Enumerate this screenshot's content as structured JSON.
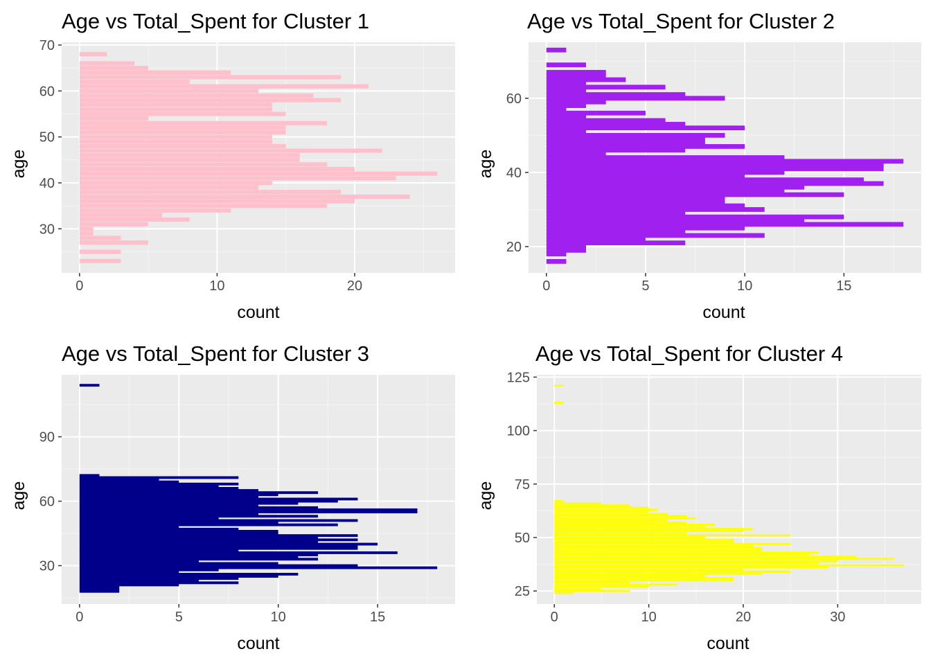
{
  "chart_data": [
    {
      "type": "bar",
      "orientation": "horizontal",
      "title": "Age vs Total_Spent for Cluster 1",
      "xlabel": "count",
      "ylabel": "age",
      "xlim": [
        -1.3,
        27.3
      ],
      "ylim": [
        20.4,
        70.6
      ],
      "xticks": [
        0,
        10,
        20
      ],
      "yticks": [
        30,
        40,
        50,
        60,
        70
      ],
      "grid": true,
      "color": "#FFC0CB",
      "series": [
        {
          "age": [
            23,
            25,
            27,
            28,
            29,
            30,
            31,
            32,
            33,
            34,
            35,
            36,
            37,
            38,
            39,
            40,
            41,
            42,
            43,
            44,
            45,
            46,
            47,
            48,
            49,
            50,
            51,
            52,
            53,
            54,
            55,
            56,
            57,
            58,
            59,
            60,
            61,
            62,
            63,
            64,
            65,
            66,
            68
          ],
          "count": [
            3,
            3,
            5,
            3,
            1,
            1,
            5,
            8,
            6,
            11,
            18,
            20,
            24,
            19,
            13,
            14,
            23,
            26,
            20,
            18,
            16,
            16,
            22,
            15,
            14,
            14,
            15,
            15,
            18,
            5,
            15,
            14,
            14,
            19,
            17,
            13,
            21,
            8,
            19,
            11,
            5,
            4,
            2
          ]
        }
      ]
    },
    {
      "type": "bar",
      "orientation": "horizontal",
      "title": "Age vs Total_Spent for Cluster 2",
      "xlabel": "count",
      "ylabel": "age",
      "xlim": [
        -0.9,
        18.9
      ],
      "ylim": [
        12.9,
        75.1
      ],
      "xticks": [
        0,
        5,
        10,
        15
      ],
      "yticks": [
        20,
        40,
        60
      ],
      "grid": true,
      "color": "#A020F0",
      "series": [
        {
          "age": [
            16,
            18,
            19,
            20,
            21,
            22,
            23,
            24,
            25,
            26,
            27,
            28,
            29,
            30,
            31,
            32,
            33,
            34,
            35,
            36,
            37,
            38,
            39,
            40,
            41,
            42,
            43,
            44,
            45,
            46,
            47,
            48,
            49,
            50,
            51,
            52,
            53,
            54,
            55,
            56,
            57,
            58,
            59,
            60,
            61,
            62,
            63,
            64,
            65,
            66,
            67,
            69,
            73
          ],
          "count": [
            1,
            1,
            2,
            2,
            7,
            5,
            11,
            7,
            10,
            18,
            13,
            15,
            7,
            11,
            10,
            9,
            9,
            15,
            12,
            13,
            17,
            16,
            10,
            12,
            17,
            17,
            18,
            12,
            3,
            7,
            10,
            8,
            8,
            9,
            2,
            10,
            7,
            6,
            2,
            5,
            1,
            2,
            3,
            9,
            7,
            2,
            6,
            2,
            4,
            3,
            3,
            2,
            1
          ]
        }
      ]
    },
    {
      "type": "bar",
      "orientation": "horizontal",
      "title": "Age vs Total_Spent for Cluster 3",
      "xlabel": "count",
      "ylabel": "age",
      "xlim": [
        -0.9,
        18.9
      ],
      "ylim": [
        12.1,
        118.9
      ],
      "xticks": [
        0,
        5,
        10,
        15
      ],
      "yticks": [
        30,
        60,
        90
      ],
      "grid": true,
      "color": "#00008B",
      "series": [
        {
          "age": [
            18,
            19,
            20,
            21,
            22,
            23,
            24,
            25,
            26,
            27,
            28,
            29,
            30,
            31,
            32,
            33,
            34,
            35,
            36,
            37,
            38,
            39,
            40,
            41,
            42,
            43,
            44,
            45,
            46,
            47,
            48,
            49,
            50,
            51,
            52,
            53,
            54,
            55,
            56,
            57,
            58,
            59,
            60,
            61,
            62,
            63,
            64,
            65,
            66,
            67,
            68,
            69,
            70,
            71,
            72,
            114
          ],
          "count": [
            2,
            2,
            2,
            5,
            8,
            6,
            8,
            10,
            11,
            5,
            7,
            18,
            14,
            10,
            6,
            12,
            11,
            12,
            16,
            8,
            14,
            14,
            15,
            12,
            14,
            12,
            14,
            10,
            10,
            8,
            5,
            13,
            10,
            14,
            7,
            12,
            9,
            17,
            17,
            12,
            9,
            11,
            13,
            14,
            9,
            10,
            12,
            9,
            8,
            7,
            8,
            5,
            4,
            8,
            1,
            1
          ]
        }
      ]
    },
    {
      "type": "bar",
      "orientation": "horizontal",
      "title": "Age vs Total_Spent for Cluster 4",
      "xlabel": "count",
      "ylabel": "age",
      "xlim": [
        -1.85,
        38.85
      ],
      "ylim": [
        18.9,
        126.1
      ],
      "xticks": [
        0,
        10,
        20,
        30
      ],
      "yticks": [
        25,
        50,
        75,
        100,
        125
      ],
      "grid": true,
      "color": "#FFFF00",
      "series": [
        {
          "age": [
            24,
            25,
            26,
            27,
            28,
            29,
            30,
            31,
            32,
            33,
            34,
            35,
            36,
            37,
            38,
            39,
            40,
            41,
            42,
            43,
            44,
            45,
            46,
            47,
            48,
            49,
            50,
            51,
            52,
            53,
            54,
            55,
            56,
            57,
            58,
            59,
            60,
            61,
            62,
            63,
            64,
            65,
            66,
            67,
            113,
            121
          ],
          "count": [
            2,
            8,
            5,
            10,
            13,
            8,
            19,
            19,
            16,
            22,
            25,
            20,
            29,
            37,
            28,
            30,
            36,
            32,
            27,
            28,
            22,
            22,
            21,
            25,
            19,
            19,
            16,
            25,
            14,
            20,
            21,
            16,
            17,
            14,
            12,
            15,
            14,
            12,
            10,
            11,
            10,
            8,
            5,
            1,
            1,
            1
          ]
        }
      ]
    }
  ]
}
